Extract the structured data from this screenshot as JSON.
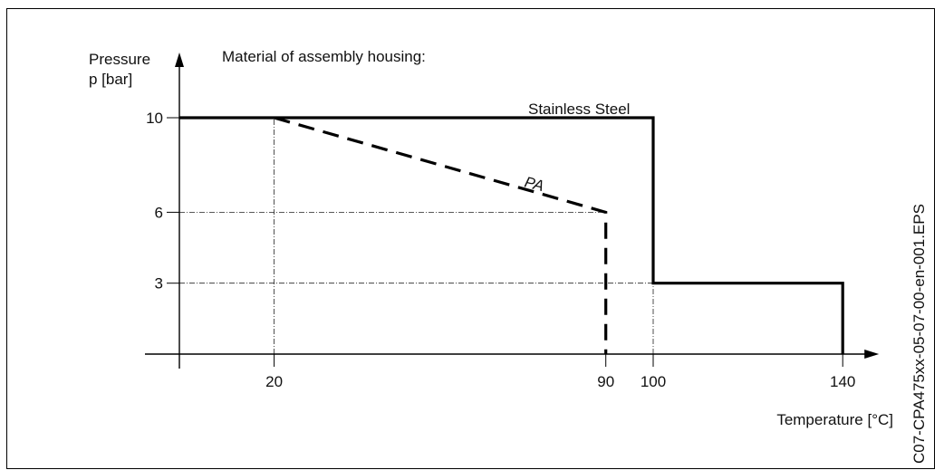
{
  "chart_data": {
    "type": "line",
    "title": "Material of assembly housing:",
    "ylabel_line1": "Pressure",
    "ylabel_line2": "p [bar]",
    "xlabel": "Temperature [°C]",
    "xlim": [
      0,
      140
    ],
    "ylim": [
      0,
      10
    ],
    "x_ticks": [
      "20",
      "90",
      "100",
      "140"
    ],
    "y_ticks": [
      "10",
      "6",
      "3"
    ],
    "series": [
      {
        "name": "Stainless Steel",
        "style": "solid",
        "points": [
          [
            0,
            10
          ],
          [
            100,
            10
          ],
          [
            100,
            3
          ],
          [
            140,
            3
          ],
          [
            140,
            0
          ]
        ]
      },
      {
        "name": "PA",
        "style": "dashed",
        "points": [
          [
            20,
            10
          ],
          [
            90,
            6
          ],
          [
            90,
            0
          ]
        ]
      }
    ],
    "reference_lines": [
      {
        "kind": "vertical",
        "x": 20,
        "y_range": [
          0,
          10
        ]
      },
      {
        "kind": "horizontal",
        "y": 6,
        "x_range": [
          0,
          90
        ]
      },
      {
        "kind": "horizontal",
        "y": 3,
        "x_range": [
          0,
          100
        ]
      },
      {
        "kind": "vertical",
        "x": 100,
        "y_range": [
          0,
          3
        ]
      }
    ],
    "side_label": "C07-CPA475xx-05-07-00-en-001.EPS",
    "line_color": "#000000",
    "grid": false
  }
}
